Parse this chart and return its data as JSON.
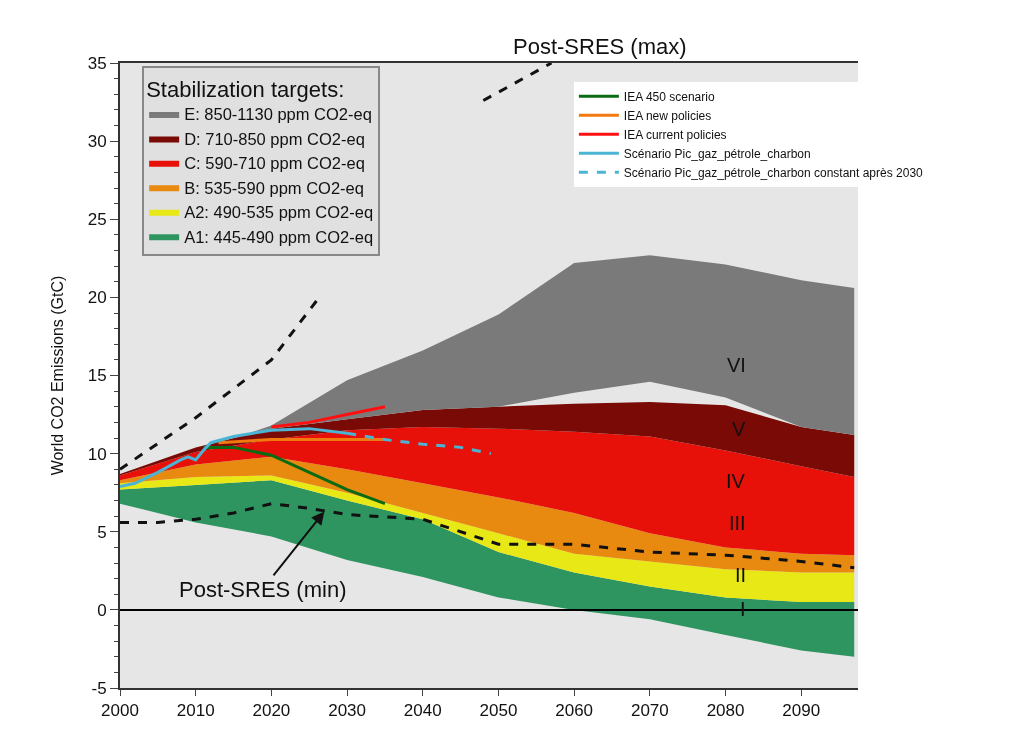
{
  "chart_data": {
    "type": "area",
    "ylabel": "World CO2 Emissions (GtC)",
    "legend_title": "Stabilization targets:",
    "legend": "top",
    "grid": false,
    "marker": "none",
    "xlim": [
      2000,
      2097.5
    ],
    "xticks": [
      2000,
      2010,
      2020,
      2030,
      2040,
      2050,
      2060,
      2070,
      2080,
      2090
    ],
    "ylim": [
      -5,
      35
    ],
    "yticks": [
      -5,
      0,
      5,
      10,
      15,
      20,
      25,
      30,
      35
    ],
    "ref_lines": [
      {
        "axis": "y",
        "value": 0,
        "color": "#000000"
      }
    ],
    "annotations": [
      "Post-SRES (max)",
      {
        "text": "Post-SRES (min)",
        "x": 2027,
        "y": 6.3
      },
      "VI",
      "V",
      "IV",
      "III",
      "II",
      "I"
    ],
    "series": [
      {
        "name": "A1: 445-490 ppm CO2-eq",
        "color": "#2e9460",
        "x": [
          2000,
          2010,
          2020,
          2030,
          2040,
          2050,
          2060,
          2070,
          2080,
          2090,
          2097
        ],
        "values": [
          null,
          null,
          null,
          null,
          null,
          null,
          null,
          null,
          null,
          null,
          null
        ],
        "upper": [
          7.7,
          8.0,
          8.3,
          7.0,
          5.8,
          3.7,
          2.4,
          1.5,
          0.8,
          0.5,
          0.5
        ],
        "lower": [
          6.8,
          5.6,
          4.7,
          3.2,
          2.1,
          0.8,
          0.0,
          -0.6,
          -1.6,
          -2.6,
          -3.0
        ]
      },
      {
        "name": "A2: 490-535 ppm CO2-eq",
        "color": "#e8e816",
        "x": [
          2000,
          2010,
          2020,
          2030,
          2040,
          2050,
          2060,
          2070,
          2080,
          2090,
          2097
        ],
        "values": [
          null,
          null,
          null,
          null,
          null,
          null,
          null,
          null,
          null,
          null,
          null
        ],
        "upper": [
          8.1,
          8.5,
          8.6,
          7.5,
          6.2,
          4.9,
          3.6,
          3.1,
          2.6,
          2.4,
          2.4
        ],
        "lower": [
          7.7,
          8.0,
          8.3,
          7.0,
          5.8,
          3.7,
          2.4,
          1.5,
          0.8,
          0.5,
          0.5
        ]
      },
      {
        "name": "B: 535-590 ppm CO2-eq",
        "color": "#e88a10",
        "x": [
          2000,
          2010,
          2020,
          2030,
          2040,
          2050,
          2060,
          2070,
          2080,
          2090,
          2097
        ],
        "values": [
          null,
          null,
          null,
          null,
          null,
          null,
          null,
          null,
          null,
          null,
          null
        ],
        "upper": [
          8.3,
          9.3,
          9.8,
          9.0,
          8.1,
          7.2,
          6.2,
          4.9,
          4.0,
          3.6,
          3.5
        ],
        "lower": [
          8.1,
          8.5,
          8.6,
          7.5,
          6.2,
          4.9,
          3.6,
          3.1,
          2.6,
          2.4,
          2.4
        ]
      },
      {
        "name": "C: 590-710 ppm CO2-eq",
        "color": "#e8110a",
        "x": [
          2000,
          2010,
          2020,
          2030,
          2040,
          2050,
          2060,
          2070,
          2080,
          2090,
          2097
        ],
        "values": [
          null,
          null,
          null,
          null,
          null,
          null,
          null,
          null,
          null,
          null,
          null
        ],
        "upper": [
          8.6,
          10.1,
          10.9,
          11.5,
          11.7,
          11.6,
          11.4,
          11.1,
          10.2,
          9.2,
          8.5
        ],
        "lower": [
          8.3,
          9.3,
          9.8,
          9.0,
          8.1,
          7.2,
          6.2,
          4.9,
          4.0,
          3.6,
          3.5
        ]
      },
      {
        "name": "D: 710-850 ppm CO2-eq",
        "color": "#7a0a05",
        "x": [
          2000,
          2010,
          2020,
          2030,
          2040,
          2050,
          2060,
          2070,
          2080,
          2090,
          2097
        ],
        "values": [
          null,
          null,
          null,
          null,
          null,
          null,
          null,
          null,
          null,
          null,
          null
        ],
        "upper": [
          8.7,
          10.4,
          11.6,
          12.2,
          12.8,
          13.0,
          13.2,
          13.3,
          13.1,
          11.7,
          11.2
        ],
        "lower": [
          8.6,
          10.1,
          10.9,
          11.5,
          11.7,
          11.6,
          11.4,
          11.1,
          10.2,
          9.2,
          8.5
        ]
      },
      {
        "name": "E: 850-1130 ppm CO2-eq",
        "color": "#7a7a7a",
        "x": [
          2017,
          2020,
          2030,
          2040,
          2050,
          2060,
          2070,
          2080,
          2090,
          2097
        ],
        "values": [
          null,
          null,
          null,
          null,
          null,
          null,
          null,
          null,
          null,
          null
        ],
        "upper": [
          11.3,
          11.8,
          14.7,
          16.6,
          18.9,
          22.2,
          22.7,
          22.1,
          21.1,
          20.6
        ],
        "lower": [
          11.3,
          11.6,
          12.2,
          12.8,
          13.0,
          13.9,
          14.6,
          13.6,
          11.7,
          11.2
        ]
      },
      {
        "type": "line",
        "color": "#111111",
        "line_style": "dashed",
        "x": [
          2000,
          2010,
          2020,
          2026,
          2030,
          2048,
          2057
        ],
        "values": [
          9.0,
          12.3,
          16.0,
          19.8,
          null,
          32.6,
          35.0
        ]
      },
      {
        "type": "line",
        "color": "#111111",
        "line_style": "dashed",
        "x": [
          2000,
          2005,
          2010,
          2015,
          2020,
          2025,
          2030,
          2040,
          2050,
          2060,
          2070,
          2080,
          2090,
          2097
        ],
        "values": [
          5.6,
          5.6,
          5.8,
          6.2,
          6.8,
          6.5,
          6.1,
          5.8,
          4.2,
          4.2,
          3.7,
          3.5,
          3.1,
          2.7
        ]
      },
      {
        "name": "IEA 450 scenario",
        "type": "line",
        "color": "#0b6b12",
        "line_style": "solid",
        "x": [
          2011,
          2015,
          2020,
          2025,
          2030,
          2035
        ],
        "values": [
          10.4,
          10.4,
          9.9,
          8.8,
          7.7,
          6.8
        ]
      },
      {
        "name": "IEA new policies",
        "type": "line",
        "color": "#f07a10",
        "line_style": "solid",
        "x": [
          2013,
          2020,
          2035
        ],
        "values": [
          10.7,
          10.9,
          10.9
        ]
      },
      {
        "name": "IEA current policies",
        "type": "line",
        "color": "#ff1010",
        "line_style": "solid",
        "x": [
          2020,
          2025,
          2030,
          2035
        ],
        "values": [
          11.7,
          12.0,
          12.5,
          13.0
        ]
      },
      {
        "name": "Scénario Pic_gaz_pétrole_charbon",
        "type": "line",
        "color": "#4ab4d4",
        "line_style": "solid",
        "x": [
          2000,
          2002,
          2005,
          2008,
          2009,
          2010,
          2011,
          2012,
          2015,
          2020,
          2025,
          2030
        ],
        "values": [
          7.9,
          8.1,
          8.8,
          9.6,
          9.8,
          9.6,
          10.2,
          10.7,
          11.1,
          11.5,
          11.6,
          11.3
        ]
      },
      {
        "name": "Scénario Pic_gaz_pétrole_charbon constant après 2030",
        "type": "line",
        "color": "#4ab4d4",
        "line_style": "dashed",
        "x": [
          2030,
          2035,
          2040,
          2045,
          2049
        ],
        "values": [
          11.3,
          10.9,
          10.6,
          10.4,
          10.0
        ]
      }
    ]
  }
}
